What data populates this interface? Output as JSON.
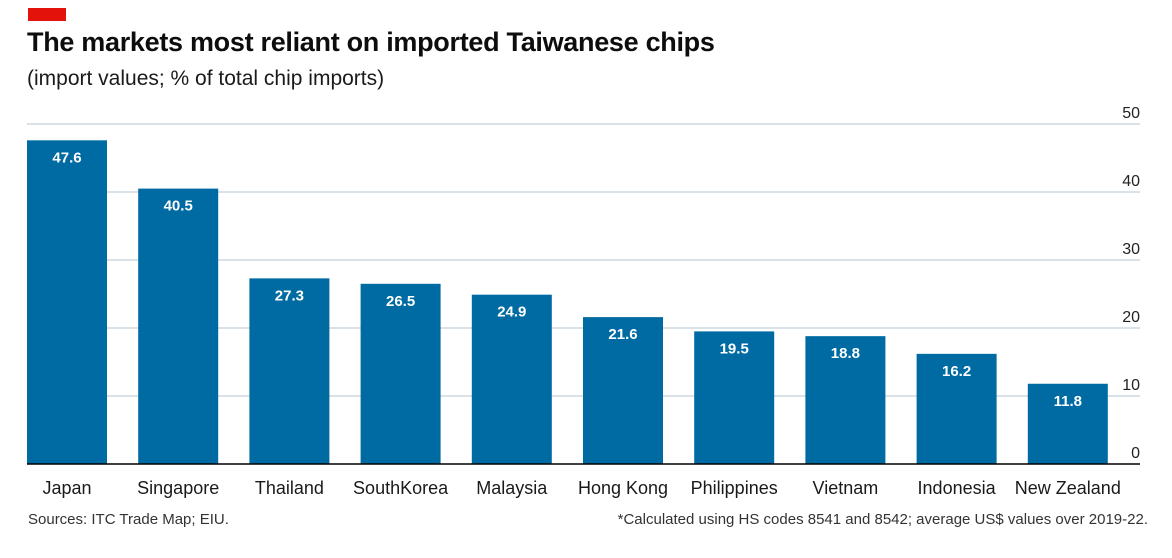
{
  "header": {
    "title": "The markets most reliant on imported Taiwanese chips",
    "subtitle": "(import values; % of total chip imports)"
  },
  "footer": {
    "sources": "Sources: ITC Trade Map; EIU.",
    "note": "*Calculated using HS codes 8541 and 8542; average US$ values over 2019-22."
  },
  "colors": {
    "bar": "#006ba2",
    "brand_red": "#e3120b",
    "gridline": "#b7c6cf",
    "axis": "#000000"
  },
  "chart_data": {
    "type": "bar",
    "categories": [
      "Japan",
      "Singapore",
      "Thailand",
      "SouthKorea",
      "Malaysia",
      "Hong Kong",
      "Philippines",
      "Vietnam",
      "Indonesia",
      "New Zealand"
    ],
    "values": [
      47.6,
      40.5,
      27.3,
      26.5,
      24.9,
      21.6,
      19.5,
      18.8,
      16.2,
      11.8
    ],
    "data_labels": [
      "47.6",
      "40.5",
      "27.3",
      "26.5",
      "24.9",
      "21.6",
      "19.5",
      "18.8",
      "16.2",
      "11.8"
    ],
    "yticks": [
      0,
      10,
      20,
      30,
      40,
      50
    ],
    "ylim": [
      0,
      50
    ],
    "yaxis_side": "right",
    "grid": true,
    "xlabel": "",
    "ylabel": ""
  }
}
